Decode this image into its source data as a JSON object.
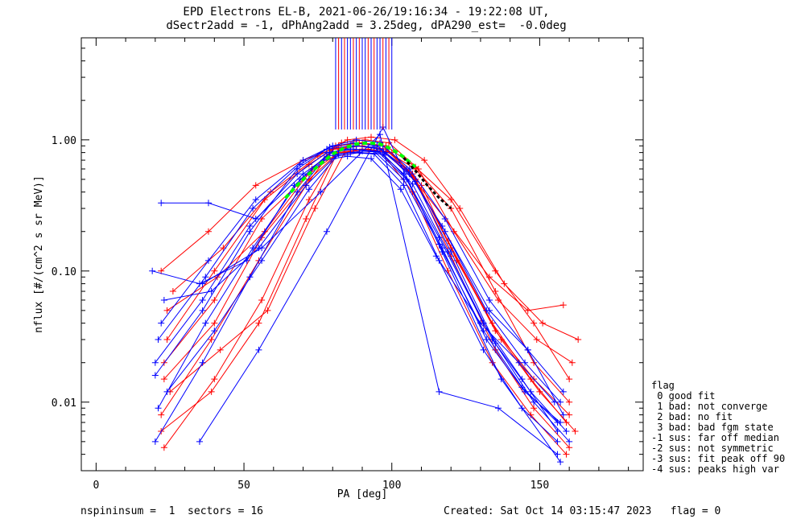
{
  "title_line1": "EPD Electrons EL-B, 2021-06-26/19:16:34 - 19:22:08 UT,",
  "title_line2": "dSectr2add = -1, dPhAng2add = 3.25deg, dPA290_est=  -0.0deg",
  "footer_left": "nspininsum =  1  sectors = 16",
  "footer_right": "Created: Sat Oct 14 03:15:47 2023   flag = 0",
  "legend": {
    "title": "flag",
    "items": [
      " 0 good fit",
      " 1 bad: not converge",
      " 2 bad: no fit",
      " 3 bad: bad fgm state",
      "-1 sus: far off median",
      "-2 sus: not symmetric",
      "-3 sus: fit peak off 90",
      "-4 sus: peaks high var"
    ]
  },
  "colors": {
    "red": "#ff0000",
    "blue": "#0000ff",
    "green": "#00ff00",
    "black": "#000000"
  },
  "chart_data": {
    "type": "line",
    "xlabel": "PA [deg]",
    "ylabel": "nflux [#/(cm^2 s sr MeV)]",
    "xlim": [
      -5,
      185
    ],
    "ylim": [
      0.003,
      6
    ],
    "yscale": "log",
    "x_ticks": [
      0,
      50,
      100,
      150
    ],
    "y_ticks": [
      {
        "value": 0.01,
        "label": "0.01"
      },
      {
        "value": 0.1,
        "label": "0.10"
      },
      {
        "value": 1.0,
        "label": "1.00"
      }
    ],
    "series": [
      {
        "color": "red",
        "x": [
          23,
          40,
          56,
          72,
          82,
          90,
          98,
          108,
          120,
          135,
          148,
          160
        ],
        "y": [
          0.0045,
          0.015,
          0.06,
          0.35,
          0.85,
          0.9,
          0.85,
          0.5,
          0.13,
          0.025,
          0.009,
          0.0045
        ]
      },
      {
        "color": "red",
        "x": [
          22,
          39,
          55,
          71,
          81,
          89,
          97,
          107,
          119,
          134,
          147,
          159
        ],
        "y": [
          0.008,
          0.03,
          0.12,
          0.45,
          0.9,
          0.95,
          0.9,
          0.55,
          0.17,
          0.04,
          0.015,
          0.007
        ]
      },
      {
        "color": "red",
        "x": [
          24,
          41,
          57,
          73,
          83,
          91,
          99,
          109,
          121,
          136,
          149,
          161
        ],
        "y": [
          0.05,
          0.09,
          0.2,
          0.6,
          0.95,
          1.0,
          0.95,
          0.6,
          0.2,
          0.06,
          0.03,
          0.02
        ]
      },
      {
        "color": "red",
        "x": [
          22,
          38,
          54,
          70,
          80,
          88,
          96,
          106,
          118,
          133,
          146,
          158
        ],
        "y": [
          0.1,
          0.2,
          0.45,
          0.7,
          0.85,
          0.9,
          0.85,
          0.55,
          0.25,
          0.09,
          0.05,
          0.055
        ]
      },
      {
        "color": "red",
        "x": [
          25,
          42,
          58,
          74,
          84,
          92,
          100,
          110,
          122,
          137,
          150,
          162
        ],
        "y": [
          0.012,
          0.025,
          0.05,
          0.3,
          0.8,
          0.85,
          0.8,
          0.45,
          0.12,
          0.03,
          0.012,
          0.006
        ]
      },
      {
        "color": "red",
        "x": [
          23,
          40,
          56,
          72,
          82,
          90,
          98,
          108,
          120,
          135,
          148,
          160
        ],
        "y": [
          0.02,
          0.06,
          0.25,
          0.55,
          0.8,
          0.85,
          0.82,
          0.6,
          0.3,
          0.07,
          0.02,
          0.01
        ]
      },
      {
        "color": "red",
        "x": [
          24,
          40,
          57,
          72,
          82,
          90,
          98,
          108,
          120,
          135,
          148,
          160
        ],
        "y": [
          0.03,
          0.1,
          0.35,
          0.65,
          0.9,
          0.95,
          0.9,
          0.62,
          0.35,
          0.1,
          0.04,
          0.015
        ]
      },
      {
        "color": "red",
        "x": [
          22,
          39,
          55,
          71,
          81,
          89,
          97,
          107,
          119,
          134,
          147,
          159
        ],
        "y": [
          0.006,
          0.012,
          0.04,
          0.25,
          0.75,
          0.8,
          0.78,
          0.4,
          0.1,
          0.02,
          0.008,
          0.004
        ]
      },
      {
        "color": "red",
        "x": [
          26,
          43,
          59,
          75,
          85,
          93,
          101,
          111,
          123,
          138,
          151,
          163
        ],
        "y": [
          0.07,
          0.15,
          0.4,
          0.75,
          1.0,
          1.05,
          1.0,
          0.7,
          0.3,
          0.08,
          0.04,
          0.03
        ]
      },
      {
        "color": "red",
        "x": [
          23,
          40,
          56,
          72,
          82,
          90,
          98,
          108,
          120,
          135,
          148,
          160
        ],
        "y": [
          0.015,
          0.04,
          0.18,
          0.5,
          0.8,
          0.85,
          0.8,
          0.5,
          0.15,
          0.035,
          0.015,
          0.008
        ]
      },
      {
        "color": "blue",
        "x": [
          20,
          36,
          52,
          68,
          78,
          86,
          94,
          104,
          116,
          131,
          144,
          156
        ],
        "y": [
          0.005,
          0.02,
          0.09,
          0.4,
          0.75,
          0.8,
          0.78,
          0.45,
          0.12,
          0.025,
          0.009,
          0.005
        ]
      },
      {
        "color": "blue",
        "x": [
          21,
          37,
          53,
          69,
          79,
          87,
          95,
          105,
          117,
          132,
          145,
          157
        ],
        "y": [
          0.009,
          0.04,
          0.15,
          0.5,
          0.8,
          0.85,
          0.82,
          0.5,
          0.15,
          0.03,
          0.012,
          0.007
        ]
      },
      {
        "color": "blue",
        "x": [
          19,
          35,
          51,
          67,
          77,
          85,
          93,
          103,
          115,
          130,
          143,
          155
        ],
        "y": [
          0.1,
          0.08,
          0.12,
          0.45,
          0.7,
          0.75,
          0.72,
          0.42,
          0.13,
          0.04,
          0.02,
          0.01
        ]
      },
      {
        "color": "blue",
        "x": [
          22,
          38,
          54,
          70,
          80,
          88,
          96,
          106,
          118,
          133,
          146,
          158
        ],
        "y": [
          0.33,
          0.33,
          0.25,
          0.55,
          0.8,
          0.9,
          0.85,
          0.55,
          0.2,
          0.05,
          0.025,
          0.008
        ]
      },
      {
        "color": "blue",
        "x": [
          20,
          36,
          52,
          68,
          78,
          86,
          94,
          104,
          116,
          131,
          144,
          156
        ],
        "y": [
          0.016,
          0.05,
          0.2,
          0.6,
          0.85,
          0.9,
          0.88,
          0.55,
          0.18,
          0.04,
          0.015,
          0.006
        ]
      },
      {
        "color": "blue",
        "x": [
          21,
          37,
          53,
          69,
          79,
          87,
          95,
          105,
          117,
          132,
          145,
          157
        ],
        "y": [
          0.03,
          0.09,
          0.3,
          0.65,
          0.88,
          0.95,
          0.9,
          0.6,
          0.22,
          0.05,
          0.02,
          0.01
        ]
      },
      {
        "color": "blue",
        "x": [
          23,
          39,
          55,
          71,
          81,
          89,
          97,
          107,
          119,
          134,
          147,
          159
        ],
        "y": [
          0.06,
          0.07,
          0.15,
          0.45,
          0.75,
          0.8,
          0.78,
          0.46,
          0.14,
          0.03,
          0.012,
          0.006
        ]
      },
      {
        "color": "blue",
        "x": [
          20,
          36,
          52,
          68,
          78,
          86,
          94,
          104,
          116,
          131,
          144,
          156
        ],
        "y": [
          0.02,
          0.06,
          0.22,
          0.55,
          0.8,
          0.85,
          0.82,
          0.5,
          0.16,
          0.035,
          0.013,
          0.007
        ]
      },
      {
        "color": "blue",
        "x": [
          22,
          38,
          54,
          70,
          80,
          88,
          96,
          106,
          118,
          133,
          146,
          158
        ],
        "y": [
          0.04,
          0.12,
          0.35,
          0.7,
          0.9,
          1.0,
          0.95,
          0.6,
          0.25,
          0.06,
          0.025,
          0.012
        ]
      },
      {
        "color": "blue",
        "x": [
          24,
          40,
          56,
          72,
          82,
          90,
          98,
          108,
          120,
          135,
          148,
          160
        ],
        "y": [
          0.012,
          0.035,
          0.12,
          0.42,
          0.78,
          0.82,
          0.8,
          0.48,
          0.14,
          0.028,
          0.01,
          0.005
        ]
      },
      {
        "color": "blue",
        "x": [
          35,
          55,
          78,
          97,
          117,
          137,
          157
        ],
        "y": [
          0.005,
          0.025,
          0.2,
          1.25,
          0.14,
          0.015,
          0.0035
        ]
      },
      {
        "color": "blue",
        "x": [
          36,
          56,
          76,
          96,
          116,
          136,
          156
        ],
        "y": [
          0.08,
          0.15,
          0.4,
          1.1,
          0.012,
          0.009,
          0.004
        ]
      }
    ],
    "fit_green": {
      "x": [
        64,
        68,
        72,
        76,
        80,
        84,
        88,
        92,
        96,
        100,
        104,
        108
      ],
      "y": [
        0.36,
        0.45,
        0.55,
        0.66,
        0.78,
        0.87,
        0.93,
        0.95,
        0.93,
        0.85,
        0.74,
        0.62
      ]
    },
    "fit_black": {
      "x": [
        104,
        108,
        112,
        116,
        120
      ],
      "y": [
        0.73,
        0.58,
        0.45,
        0.36,
        0.3
      ]
    },
    "spikes": {
      "x": [
        81,
        82,
        83,
        84,
        85,
        86,
        87,
        88,
        89,
        90,
        91,
        92,
        93,
        94,
        95,
        96,
        97,
        98,
        99,
        100
      ],
      "colors": [
        "blue",
        "red",
        "blue",
        "red",
        "blue",
        "blue",
        "red",
        "blue",
        "red",
        "blue",
        "blue",
        "red",
        "blue",
        "red",
        "blue",
        "blue",
        "red",
        "blue",
        "red",
        "blue"
      ],
      "y_top": 6,
      "y_bottom": 1.2
    }
  }
}
